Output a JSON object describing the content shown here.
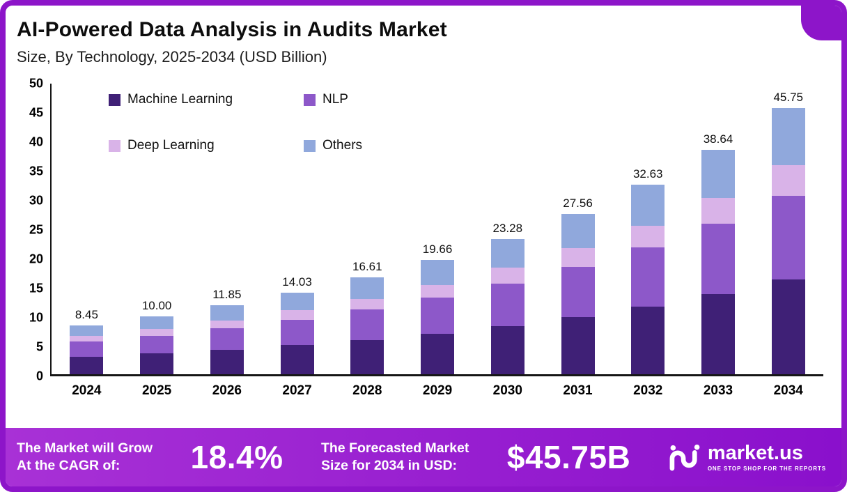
{
  "header": {
    "title": "AI-Powered Data Analysis in Audits Market",
    "subtitle": "Size, By Technology, 2025-2034 (USD Billion)"
  },
  "chart_data": {
    "type": "bar",
    "stacked": true,
    "title": "AI-Powered Data Analysis in Audits Market Size, By Technology, 2025-2034 (USD Billion)",
    "categories": [
      "2024",
      "2025",
      "2026",
      "2027",
      "2028",
      "2029",
      "2030",
      "2031",
      "2032",
      "2033",
      "2034"
    ],
    "series": [
      {
        "name": "Machine Learning",
        "color": "#3f2076",
        "values": [
          3.0,
          3.55,
          4.2,
          5.0,
          5.9,
          7.0,
          8.3,
          9.8,
          11.6,
          13.75,
          16.3
        ]
      },
      {
        "name": "NLP",
        "color": "#8d58c9",
        "values": [
          2.6,
          3.1,
          3.7,
          4.4,
          5.2,
          6.15,
          7.3,
          8.65,
          10.25,
          12.15,
          14.4
        ]
      },
      {
        "name": "Deep Learning",
        "color": "#d9b3e8",
        "values": [
          1.0,
          1.15,
          1.35,
          1.6,
          1.9,
          2.25,
          2.7,
          3.2,
          3.75,
          4.45,
          5.3
        ]
      },
      {
        "name": "Others",
        "color": "#90a8dc",
        "values": [
          1.85,
          2.2,
          2.6,
          3.03,
          3.61,
          4.26,
          4.98,
          5.91,
          7.03,
          8.29,
          9.75
        ]
      }
    ],
    "totals": [
      8.45,
      10.0,
      11.85,
      14.03,
      16.61,
      19.66,
      23.28,
      27.56,
      32.63,
      38.64,
      45.75
    ],
    "total_labels": [
      "8.45",
      "10.00",
      "11.85",
      "14.03",
      "16.61",
      "19.66",
      "23.28",
      "27.56",
      "32.63",
      "38.64",
      "45.75"
    ],
    "ylim": [
      0,
      50
    ],
    "yticks": [
      0,
      5,
      10,
      15,
      20,
      25,
      30,
      35,
      40,
      45,
      50
    ],
    "grid": false,
    "legend_position": "top-left-inside"
  },
  "footer": {
    "cagr": {
      "label_line1": "The Market will Grow",
      "label_line2": "At the CAGR of:",
      "value": "18.4%"
    },
    "forecast": {
      "label_line1": "The Forecasted Market",
      "label_line2": "Size for 2034 in USD:",
      "value": "$45.75B"
    },
    "brand": {
      "name": "market.us",
      "tagline": "ONE STOP SHOP FOR THE REPORTS"
    }
  },
  "colors": {
    "accent_purple": "#8d15c9",
    "banner_gradient_start": "#a831d6",
    "banner_gradient_end": "#8a10cc"
  }
}
